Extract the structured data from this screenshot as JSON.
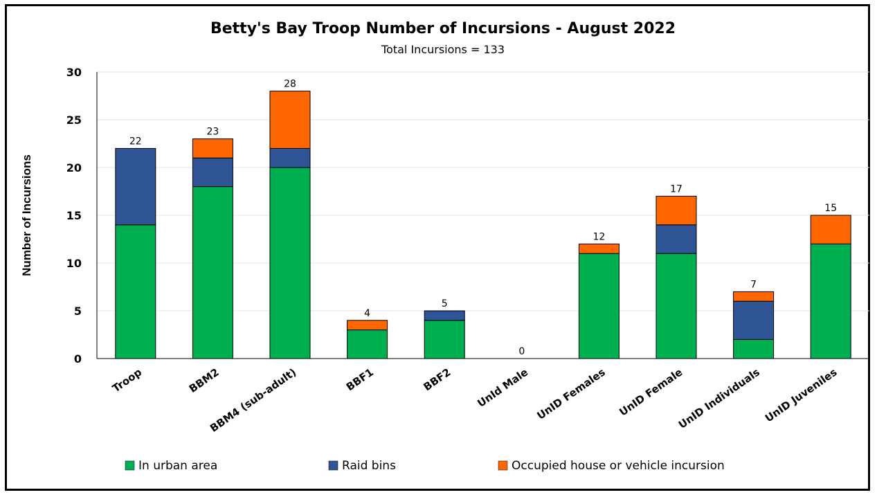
{
  "chart_data": {
    "type": "bar",
    "stacked": true,
    "title": "Betty's Bay Troop Number of Incursions - August 2022",
    "subtitle": "Total Incursions = 133",
    "xlabel": "",
    "ylabel": "Number of Incursions",
    "ylim": [
      0,
      30
    ],
    "yticks": [
      0,
      5,
      10,
      15,
      20,
      25,
      30
    ],
    "grid": true,
    "legend_position": "bottom",
    "categories": [
      "Troop",
      "BBM2",
      "BBM4 (sub-adult)",
      "BBF1",
      "BBF2",
      "UnId Male",
      "UnID Females",
      "UnID Female",
      "UnID Individuals",
      "UnID Juveniles"
    ],
    "series": [
      {
        "name": "In urban area",
        "color": "#00b050",
        "values": [
          14,
          18,
          20,
          3,
          4,
          0,
          11,
          11,
          2,
          12
        ]
      },
      {
        "name": "Raid bins",
        "color": "#2f5597",
        "values": [
          8,
          3,
          2,
          0,
          1,
          0,
          0,
          3,
          4,
          0
        ]
      },
      {
        "name": "Occupied house or vehicle incursion",
        "color": "#ff6600",
        "values": [
          0,
          2,
          6,
          1,
          0,
          0,
          1,
          3,
          1,
          3
        ]
      }
    ],
    "totals": [
      22,
      23,
      28,
      4,
      5,
      0,
      12,
      17,
      7,
      15
    ]
  }
}
